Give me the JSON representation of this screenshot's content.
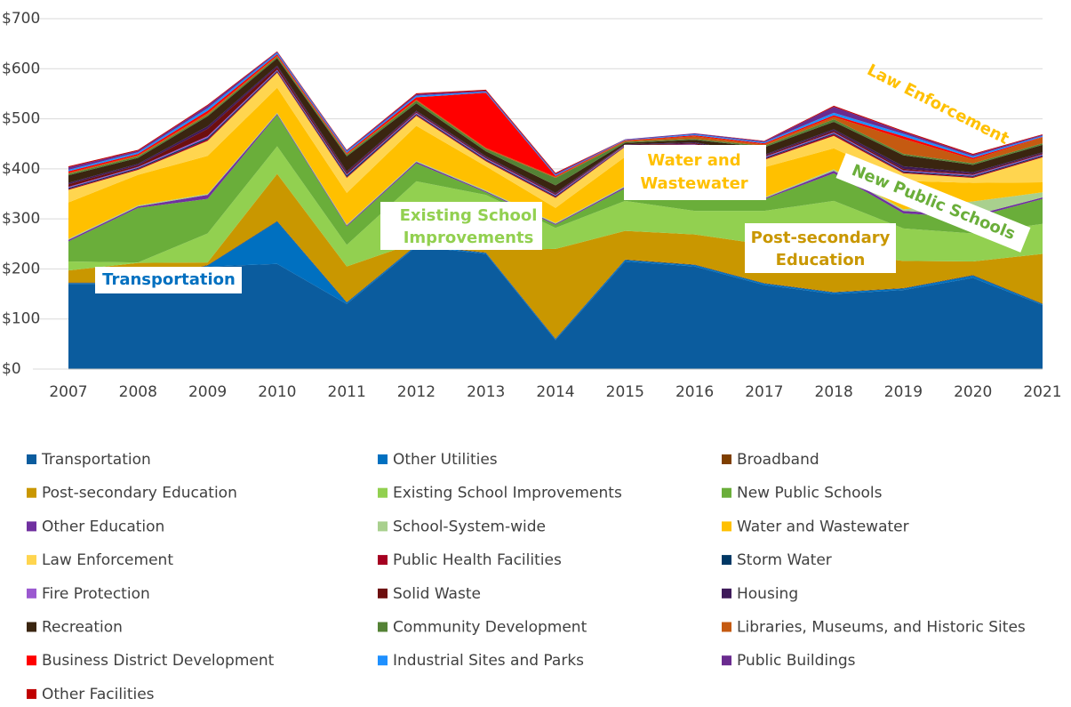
{
  "chart_data": {
    "type": "stacked_area",
    "x": [
      2007,
      2008,
      2009,
      2010,
      2011,
      2012,
      2013,
      2014,
      2015,
      2016,
      2017,
      2018,
      2019,
      2020,
      2021
    ],
    "xlim": [
      2007,
      2021
    ],
    "xticks": [
      2007,
      2008,
      2009,
      2010,
      2011,
      2012,
      2013,
      2014,
      2015,
      2016,
      2017,
      2018,
      2019,
      2020,
      2021
    ],
    "ylim": [
      0,
      700
    ],
    "yticks": [
      {
        "value": 0,
        "label": "$0"
      },
      {
        "value": 100,
        "label": "$100"
      },
      {
        "value": 200,
        "label": "$200"
      },
      {
        "value": 300,
        "label": "$300"
      },
      {
        "value": 400,
        "label": "$400"
      },
      {
        "value": 500,
        "label": "$500"
      },
      {
        "value": 600,
        "label": "$600"
      },
      {
        "value": 700,
        "label": "$700"
      }
    ],
    "grid": true,
    "legend": "bottom",
    "series": [
      {
        "name": "Transportation",
        "color": "#0b5c9e",
        "values": [
          170,
          170,
          205,
          210,
          130,
          245,
          230,
          58,
          215,
          205,
          168,
          150,
          158,
          182,
          128
        ]
      },
      {
        "name": "Other Utilities",
        "color": "#0070c0",
        "values": [
          2,
          2,
          2,
          85,
          3,
          2,
          2,
          2,
          3,
          3,
          3,
          3,
          3,
          5,
          2
        ]
      },
      {
        "name": "Broadband",
        "color": "#7f3f00",
        "values": [
          1,
          1,
          1,
          1,
          1,
          1,
          1,
          1,
          1,
          1,
          1,
          1,
          1,
          1,
          1
        ]
      },
      {
        "name": "Post-secondary Education",
        "color": "#c99700",
        "values": [
          24,
          39,
          5,
          94,
          71,
          5,
          5,
          179,
          57,
          60,
          77,
          77,
          54,
          27,
          99
        ]
      },
      {
        "name": "Existing School Improvements",
        "color": "#92d050",
        "values": [
          18,
          1,
          58,
          55,
          43,
          122,
          110,
          42,
          60,
          47,
          67,
          105,
          65,
          56,
          60
        ]
      },
      {
        "name": "New Public Schools",
        "color": "#6aae3a",
        "values": [
          40,
          109,
          69,
          63,
          37,
          36,
          5,
          6,
          25,
          25,
          23,
          55,
          30,
          32,
          50
        ]
      },
      {
        "name": "Other Education",
        "color": "#7030a0",
        "values": [
          3,
          3,
          8,
          2,
          2,
          3,
          2,
          2,
          3,
          2,
          2,
          5,
          5,
          4,
          3
        ]
      },
      {
        "name": "School-System-wide",
        "color": "#a9d08e",
        "values": [
          2,
          2,
          2,
          2,
          2,
          2,
          2,
          2,
          2,
          2,
          2,
          3,
          3,
          28,
          10
        ]
      },
      {
        "name": "Water and Wastewater",
        "color": "#ffc000",
        "values": [
          73,
          61,
          76,
          50,
          63,
          70,
          48,
          30,
          58,
          88,
          60,
          42,
          57,
          37,
          20
        ]
      },
      {
        "name": "Law Enforcement",
        "color": "#ffd54f",
        "values": [
          25,
          10,
          30,
          30,
          30,
          20,
          10,
          20,
          20,
          10,
          15,
          25,
          15,
          10,
          50
        ]
      },
      {
        "name": "Public Health Facilities",
        "color": "#a50021",
        "values": [
          2,
          2,
          3,
          2,
          2,
          2,
          2,
          2,
          1,
          2,
          2,
          3,
          2,
          2,
          2
        ]
      },
      {
        "name": "Storm Water",
        "color": "#003865",
        "values": [
          2,
          2,
          3,
          2,
          3,
          2,
          2,
          2,
          1,
          2,
          2,
          2,
          2,
          2,
          2
        ]
      },
      {
        "name": "Fire Protection",
        "color": "#9b59d0",
        "values": [
          2,
          2,
          3,
          2,
          2,
          2,
          2,
          2,
          1,
          2,
          2,
          2,
          2,
          2,
          2
        ]
      },
      {
        "name": "Solid Waste",
        "color": "#6d0f0f",
        "values": [
          5,
          3,
          15,
          5,
          3,
          2,
          2,
          2,
          1,
          2,
          2,
          3,
          3,
          2,
          2
        ]
      },
      {
        "name": "Housing",
        "color": "#3e1a5a",
        "values": [
          3,
          3,
          5,
          3,
          3,
          2,
          2,
          2,
          1,
          2,
          2,
          3,
          5,
          3,
          2
        ]
      },
      {
        "name": "Recreation",
        "color": "#3a2510",
        "values": [
          15,
          12,
          20,
          15,
          30,
          15,
          10,
          15,
          3,
          5,
          15,
          15,
          22,
          15,
          15
        ]
      },
      {
        "name": "Community Development",
        "color": "#548235",
        "values": [
          3,
          3,
          3,
          3,
          3,
          5,
          5,
          15,
          2,
          2,
          3,
          5,
          3,
          3,
          3
        ]
      },
      {
        "name": "Libraries, Museums, and Historic Sites",
        "color": "#c55a11",
        "values": [
          2,
          2,
          3,
          2,
          2,
          2,
          2,
          2,
          2,
          5,
          3,
          5,
          30,
          8,
          12
        ]
      },
      {
        "name": "Business District Development",
        "color": "#ff0000",
        "values": [
          3,
          3,
          5,
          3,
          2,
          5,
          110,
          2,
          1,
          2,
          2,
          3,
          5,
          3,
          1
        ]
      },
      {
        "name": "Industrial Sites and Parks",
        "color": "#1e90ff",
        "values": [
          3,
          3,
          5,
          3,
          3,
          3,
          2,
          2,
          1,
          2,
          2,
          5,
          5,
          3,
          2
        ]
      },
      {
        "name": "Public Buildings",
        "color": "#6a2b8f",
        "values": [
          5,
          3,
          5,
          2,
          2,
          3,
          2,
          2,
          1,
          2,
          2,
          12,
          4,
          3,
          2
        ]
      },
      {
        "name": "Other Facilities",
        "color": "#c00000",
        "values": [
          2,
          2,
          2,
          1,
          1,
          2,
          2,
          2,
          0,
          0,
          1,
          2,
          2,
          2,
          1
        ]
      }
    ],
    "annotations": [
      {
        "text": "Transportation",
        "color": "#0070c0"
      },
      {
        "text": "Existing School",
        "color": "#92d050"
      },
      {
        "text": "Improvements",
        "color": "#92d050"
      },
      {
        "text": "Water and",
        "color": "#ffc000"
      },
      {
        "text": "Wastewater",
        "color": "#ffc000"
      },
      {
        "text": "Post-secondary",
        "color": "#c99700"
      },
      {
        "text": "Education",
        "color": "#c99700"
      },
      {
        "text": "Law Enforcement",
        "color": "#ffc000"
      },
      {
        "text": "New Public Schools",
        "color": "#6aae3a"
      }
    ]
  }
}
